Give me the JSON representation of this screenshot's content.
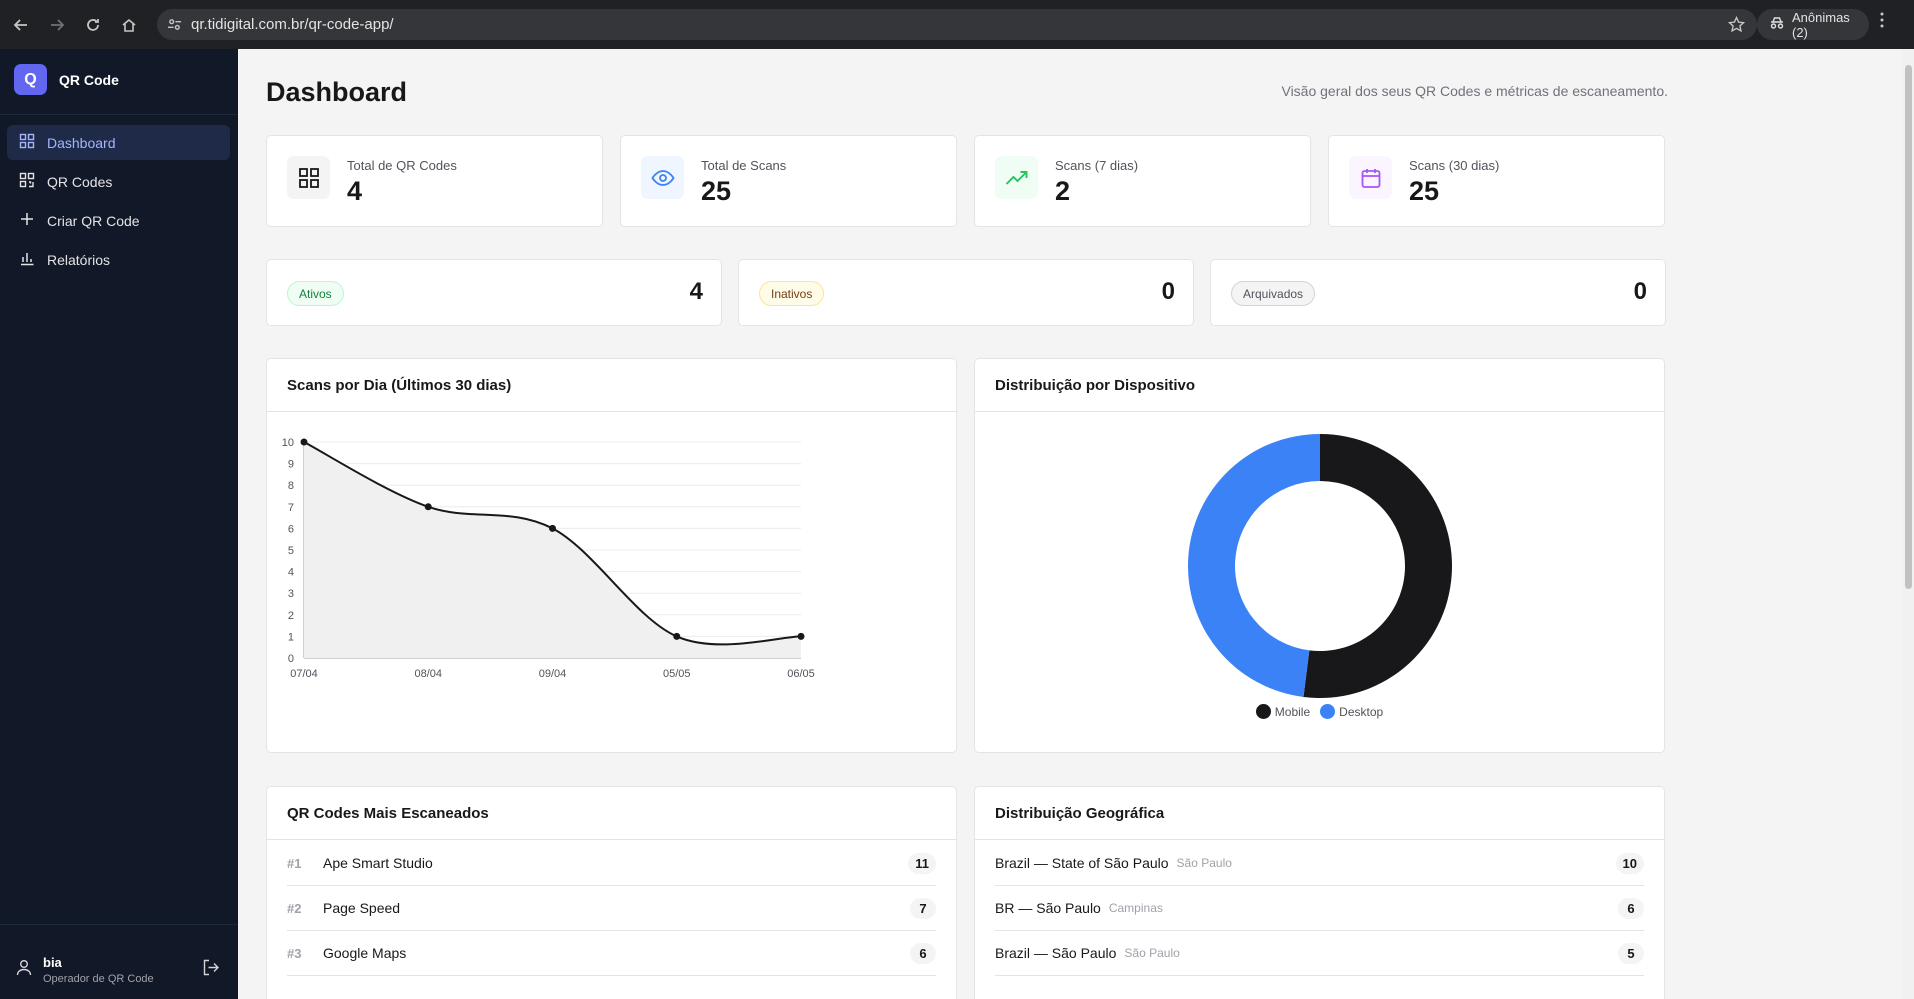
{
  "browser": {
    "url": "qr.tidigital.com.br/qr-code-app/",
    "profile_label": "Anônimas (2)"
  },
  "sidebar": {
    "brand_letter": "Q",
    "brand_name": "QR Code",
    "items": [
      {
        "label": "Dashboard",
        "icon": "dashboard-grid-icon",
        "active": true
      },
      {
        "label": "QR Codes",
        "icon": "qr-code-icon",
        "active": false
      },
      {
        "label": "Criar QR Code",
        "icon": "plus-icon",
        "active": false
      },
      {
        "label": "Relatórios",
        "icon": "bar-chart-icon",
        "active": false
      }
    ],
    "user": {
      "name": "bia",
      "role": "Operador de QR Code"
    }
  },
  "header": {
    "title": "Dashboard",
    "subtitle": "Visão geral dos seus QR Codes e métricas de escaneamento."
  },
  "stats": [
    {
      "label": "Total de QR Codes",
      "value": "4",
      "icon": "grid-icon",
      "color": "#18181b",
      "bg": "#f4f4f5"
    },
    {
      "label": "Total de Scans",
      "value": "25",
      "icon": "eye-icon",
      "color": "#3b82f6",
      "bg": "#eff6ff"
    },
    {
      "label": "Scans (7 dias)",
      "value": "2",
      "icon": "trending-up-icon",
      "color": "#22c55e",
      "bg": "#f0fdf4"
    },
    {
      "label": "Scans (30 dias)",
      "value": "25",
      "icon": "calendar-icon",
      "color": "#a855f7",
      "bg": "#faf5ff"
    }
  ],
  "statuses": [
    {
      "label": "Ativos",
      "value": "4",
      "fg": "#15803d",
      "bg": "#f0fdf4",
      "border": "#bbf7d0"
    },
    {
      "label": "Inativos",
      "value": "0",
      "fg": "#713f12",
      "bg": "#fefce8",
      "border": "#fde68a"
    },
    {
      "label": "Arquivados",
      "value": "0",
      "fg": "#52525b",
      "bg": "#f4f4f5",
      "border": "#d4d4d8"
    }
  ],
  "panels": {
    "scans_per_day_title": "Scans por Dia (Últimos 30 dias)",
    "device_title": "Distribuição por Dispositivo",
    "top_qr_title": "QR Codes Mais Escaneados",
    "geo_title": "Distribuição Geográfica"
  },
  "chart_data": [
    {
      "type": "area",
      "title": "Scans por Dia (Últimos 30 dias)",
      "x": [
        "07/04",
        "08/04",
        "09/04",
        "05/05",
        "06/05"
      ],
      "y": [
        10,
        7,
        6,
        1,
        1
      ],
      "ylim": [
        0,
        10
      ],
      "yticks": [
        0,
        1,
        2,
        3,
        4,
        5,
        6,
        7,
        8,
        9,
        10
      ],
      "grid": true,
      "line_color": "#18181b"
    },
    {
      "type": "pie",
      "title": "Distribuição por Dispositivo",
      "labels": [
        "Mobile",
        "Desktop"
      ],
      "values": [
        13,
        12
      ],
      "colors": [
        "#18181b",
        "#3b82f6"
      ],
      "donut": true,
      "legend": "bottom"
    }
  ],
  "top_qr_codes": [
    {
      "rank": "#1",
      "name": "Ape Smart Studio",
      "count": "11"
    },
    {
      "rank": "#2",
      "name": "Page Speed",
      "count": "7"
    },
    {
      "rank": "#3",
      "name": "Google Maps",
      "count": "6"
    }
  ],
  "geo": [
    {
      "region": "Brazil — State of São Paulo",
      "city": "São Paulo",
      "count": "10"
    },
    {
      "region": "BR — São Paulo",
      "city": "Campinas",
      "count": "6"
    },
    {
      "region": "Brazil — São Paulo",
      "city": "São Paulo",
      "count": "5"
    }
  ]
}
